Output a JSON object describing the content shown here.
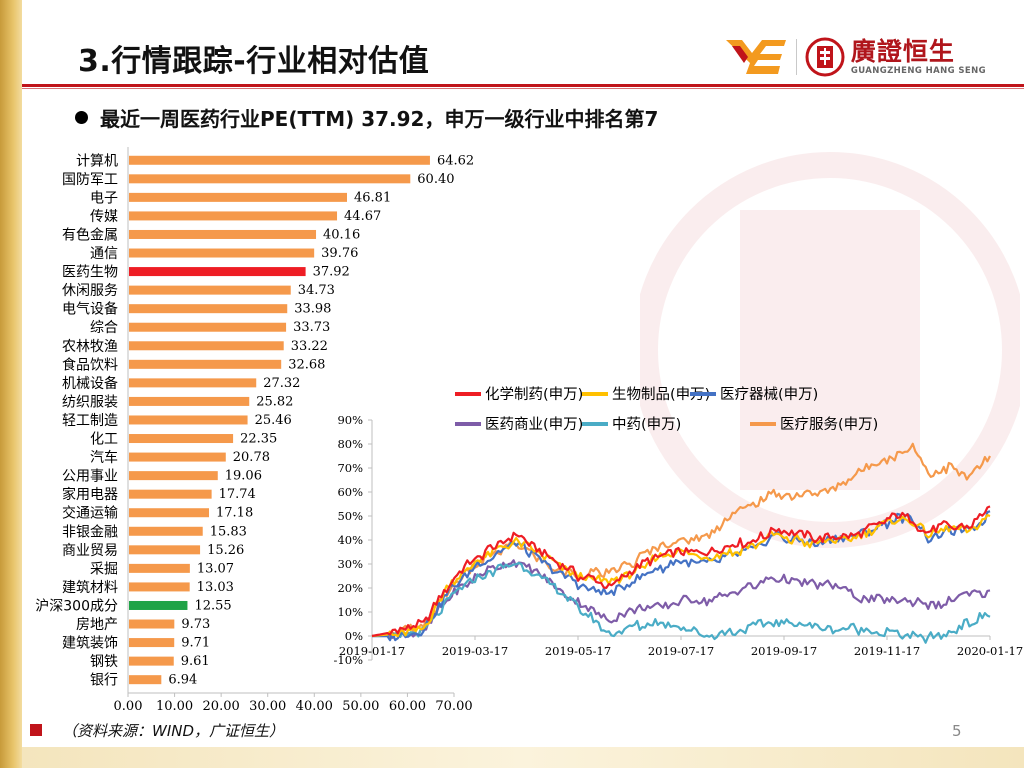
{
  "page": {
    "title": "3.行情跟踪-行业相对估值",
    "subtitle": "最近一周医药行业PE(TTM) 37.92，申万一级行业中排名第7",
    "source": "（资料来源：WIND，广证恒生）",
    "page_number": "5",
    "logo": {
      "cn": "廣證恒生",
      "en": "GUANGZHENG HANG SENG"
    }
  },
  "chart_data": [
    {
      "type": "bar",
      "orientation": "horizontal",
      "categories": [
        "计算机",
        "国防军工",
        "电子",
        "传媒",
        "有色金属",
        "通信",
        "医药生物",
        "休闲服务",
        "电气设备",
        "综合",
        "农林牧渔",
        "食品饮料",
        "机械设备",
        "纺织服装",
        "轻工制造",
        "化工",
        "汽车",
        "公用事业",
        "家用电器",
        "交通运输",
        "非银金融",
        "商业贸易",
        "采掘",
        "建筑材料",
        "沪深300成分",
        "房地产",
        "建筑装饰",
        "钢铁",
        "银行"
      ],
      "values": [
        64.62,
        60.4,
        46.81,
        44.67,
        40.16,
        39.76,
        37.92,
        34.73,
        33.98,
        33.73,
        33.22,
        32.68,
        27.32,
        25.82,
        25.46,
        22.35,
        20.78,
        19.06,
        17.74,
        17.18,
        15.83,
        15.26,
        13.07,
        13.03,
        12.55,
        9.73,
        9.71,
        9.61,
        6.94
      ],
      "value_labels": [
        "64.62",
        "60.40",
        "46.81",
        "44.67",
        "40.16",
        "39.76",
        "37.92",
        "34.73",
        "33.98",
        "33.73",
        "33.22",
        "32.68",
        "27.32",
        "25.82",
        "25.46",
        "22.35",
        "20.78",
        "19.06",
        "17.74",
        "17.18",
        "15.83",
        "15.26",
        "13.07",
        "13.03",
        "12.55",
        "9.73",
        "9.71",
        "9.61",
        "6.94"
      ],
      "xlim": [
        0,
        70
      ],
      "xticks": [
        "0.00",
        "10.00",
        "20.00",
        "30.00",
        "40.00",
        "50.00",
        "60.00",
        "70.00"
      ],
      "colors": {
        "default": "#f5994b",
        "highlight_医药生物": "#ee1d24",
        "highlight_沪深300成分": "#1fa347"
      }
    },
    {
      "type": "line",
      "ylim": [
        -0.1,
        0.9
      ],
      "yticks": [
        "-10%",
        "0%",
        "10%",
        "20%",
        "30%",
        "40%",
        "50%",
        "60%",
        "70%",
        "80%",
        "90%"
      ],
      "xticks": [
        "2019-01-17",
        "2019-03-17",
        "2019-05-17",
        "2019-07-17",
        "2019-09-17",
        "2019-11-17",
        "2020-01-17"
      ],
      "x_anchor_months": [
        0,
        2,
        4,
        6,
        8,
        10,
        12
      ],
      "series": [
        {
          "name": "化学制药(申万)",
          "color": "#ee1d24",
          "points": [
            [
              0,
              0
            ],
            [
              0.5,
              0.02
            ],
            [
              1,
              0.05
            ],
            [
              1.5,
              0.22
            ],
            [
              2,
              0.32
            ],
            [
              2.5,
              0.39
            ],
            [
              2.8,
              0.42
            ],
            [
              3.2,
              0.36
            ],
            [
              3.6,
              0.3
            ],
            [
              4,
              0.25
            ],
            [
              4.3,
              0.24
            ],
            [
              4.6,
              0.21
            ],
            [
              5,
              0.26
            ],
            [
              5.5,
              0.33
            ],
            [
              6,
              0.36
            ],
            [
              6.5,
              0.35
            ],
            [
              7,
              0.38
            ],
            [
              7.5,
              0.4
            ],
            [
              7.8,
              0.45
            ],
            [
              8.2,
              0.43
            ],
            [
              8.6,
              0.41
            ],
            [
              9,
              0.42
            ],
            [
              9.4,
              0.43
            ],
            [
              9.8,
              0.46
            ],
            [
              10.2,
              0.5
            ],
            [
              10.5,
              0.48
            ],
            [
              10.8,
              0.43
            ],
            [
              11.2,
              0.46
            ],
            [
              11.6,
              0.45
            ],
            [
              12,
              0.54
            ]
          ]
        },
        {
          "name": "生物制品(申万)",
          "color": "#ffc000",
          "points": [
            [
              0,
              0
            ],
            [
              0.5,
              0.01
            ],
            [
              1,
              0.04
            ],
            [
              1.5,
              0.21
            ],
            [
              2,
              0.31
            ],
            [
              2.5,
              0.37
            ],
            [
              2.8,
              0.4
            ],
            [
              3.2,
              0.35
            ],
            [
              3.6,
              0.29
            ],
            [
              4,
              0.24
            ],
            [
              4.3,
              0.24
            ],
            [
              4.6,
              0.22
            ],
            [
              5,
              0.25
            ],
            [
              5.5,
              0.32
            ],
            [
              6,
              0.35
            ],
            [
              6.5,
              0.33
            ],
            [
              7,
              0.35
            ],
            [
              7.5,
              0.39
            ],
            [
              7.8,
              0.42
            ],
            [
              8.2,
              0.4
            ],
            [
              8.6,
              0.38
            ],
            [
              9,
              0.4
            ],
            [
              9.4,
              0.41
            ],
            [
              9.8,
              0.45
            ],
            [
              10.2,
              0.48
            ],
            [
              10.5,
              0.47
            ],
            [
              10.8,
              0.42
            ],
            [
              11.2,
              0.45
            ],
            [
              11.6,
              0.44
            ],
            [
              12,
              0.5
            ]
          ]
        },
        {
          "name": "医疗器械(申万)",
          "color": "#4472c4",
          "points": [
            [
              0,
              0
            ],
            [
              0.5,
              0.0
            ],
            [
              1,
              0.03
            ],
            [
              1.5,
              0.19
            ],
            [
              2,
              0.29
            ],
            [
              2.5,
              0.35
            ],
            [
              2.8,
              0.38
            ],
            [
              3.2,
              0.33
            ],
            [
              3.6,
              0.27
            ],
            [
              4,
              0.22
            ],
            [
              4.3,
              0.2
            ],
            [
              4.6,
              0.17
            ],
            [
              5,
              0.22
            ],
            [
              5.5,
              0.28
            ],
            [
              6,
              0.31
            ],
            [
              6.5,
              0.3
            ],
            [
              7,
              0.33
            ],
            [
              7.5,
              0.37
            ],
            [
              7.8,
              0.42
            ],
            [
              8.2,
              0.4
            ],
            [
              8.6,
              0.38
            ],
            [
              9,
              0.4
            ],
            [
              9.4,
              0.41
            ],
            [
              9.8,
              0.45
            ],
            [
              10.2,
              0.5
            ],
            [
              10.5,
              0.48
            ],
            [
              10.8,
              0.41
            ],
            [
              11.2,
              0.44
            ],
            [
              11.6,
              0.43
            ],
            [
              12,
              0.52
            ]
          ]
        },
        {
          "name": "医药商业(申万)",
          "color": "#7e5ca8",
          "points": [
            [
              0,
              0
            ],
            [
              0.5,
              0.0
            ],
            [
              1,
              0.02
            ],
            [
              1.5,
              0.16
            ],
            [
              2,
              0.25
            ],
            [
              2.5,
              0.29
            ],
            [
              2.8,
              0.31
            ],
            [
              3.2,
              0.26
            ],
            [
              3.6,
              0.2
            ],
            [
              4,
              0.14
            ],
            [
              4.3,
              0.1
            ],
            [
              4.6,
              0.07
            ],
            [
              5,
              0.1
            ],
            [
              5.5,
              0.12
            ],
            [
              6,
              0.15
            ],
            [
              6.5,
              0.14
            ],
            [
              7,
              0.18
            ],
            [
              7.5,
              0.21
            ],
            [
              7.8,
              0.24
            ],
            [
              8.2,
              0.23
            ],
            [
              8.6,
              0.22
            ],
            [
              9,
              0.2
            ],
            [
              9.4,
              0.17
            ],
            [
              9.8,
              0.15
            ],
            [
              10.2,
              0.14
            ],
            [
              10.5,
              0.15
            ],
            [
              10.8,
              0.13
            ],
            [
              11.2,
              0.14
            ],
            [
              11.6,
              0.17
            ],
            [
              12,
              0.19
            ]
          ]
        },
        {
          "name": "中药(申万)",
          "color": "#4aacc6",
          "points": [
            [
              0,
              0
            ],
            [
              0.5,
              0.0
            ],
            [
              1,
              0.01
            ],
            [
              1.5,
              0.15
            ],
            [
              2,
              0.24
            ],
            [
              2.5,
              0.28
            ],
            [
              2.8,
              0.3
            ],
            [
              3.2,
              0.25
            ],
            [
              3.6,
              0.19
            ],
            [
              4,
              0.12
            ],
            [
              4.3,
              0.07
            ],
            [
              4.6,
              0.02
            ],
            [
              5,
              0.03
            ],
            [
              5.5,
              0.06
            ],
            [
              6,
              0.04
            ],
            [
              6.5,
              -0.01
            ],
            [
              7,
              0.02
            ],
            [
              7.5,
              0.04
            ],
            [
              7.8,
              0.06
            ],
            [
              8.2,
              0.05
            ],
            [
              8.6,
              0.03
            ],
            [
              9,
              0.02
            ],
            [
              9.4,
              0.03
            ],
            [
              9.8,
              0.02
            ],
            [
              10.2,
              0.01
            ],
            [
              10.5,
              0.0
            ],
            [
              10.8,
              -0.01
            ],
            [
              11.2,
              0.02
            ],
            [
              11.6,
              0.06
            ],
            [
              12,
              0.08
            ]
          ]
        },
        {
          "name": "医疗服务(申万)",
          "color": "#f5994b",
          "points": [
            [
              0,
              0
            ],
            [
              0.5,
              0.01
            ],
            [
              1,
              0.04
            ],
            [
              1.5,
              0.2
            ],
            [
              2,
              0.3
            ],
            [
              2.5,
              0.36
            ],
            [
              2.8,
              0.39
            ],
            [
              3.2,
              0.33
            ],
            [
              3.6,
              0.28
            ],
            [
              4,
              0.25
            ],
            [
              4.3,
              0.26
            ],
            [
              4.6,
              0.27
            ],
            [
              5,
              0.3
            ],
            [
              5.5,
              0.36
            ],
            [
              6,
              0.4
            ],
            [
              6.5,
              0.42
            ],
            [
              7,
              0.5
            ],
            [
              7.5,
              0.56
            ],
            [
              7.8,
              0.6
            ],
            [
              8.2,
              0.58
            ],
            [
              8.6,
              0.59
            ],
            [
              9,
              0.62
            ],
            [
              9.4,
              0.67
            ],
            [
              9.8,
              0.72
            ],
            [
              10.2,
              0.76
            ],
            [
              10.5,
              0.79
            ],
            [
              10.8,
              0.68
            ],
            [
              11.2,
              0.7
            ],
            [
              11.6,
              0.66
            ],
            [
              12,
              0.75
            ]
          ]
        }
      ]
    }
  ],
  "colors": {
    "brand_red": "#c0141a",
    "brand_orange": "#f39a1f"
  }
}
